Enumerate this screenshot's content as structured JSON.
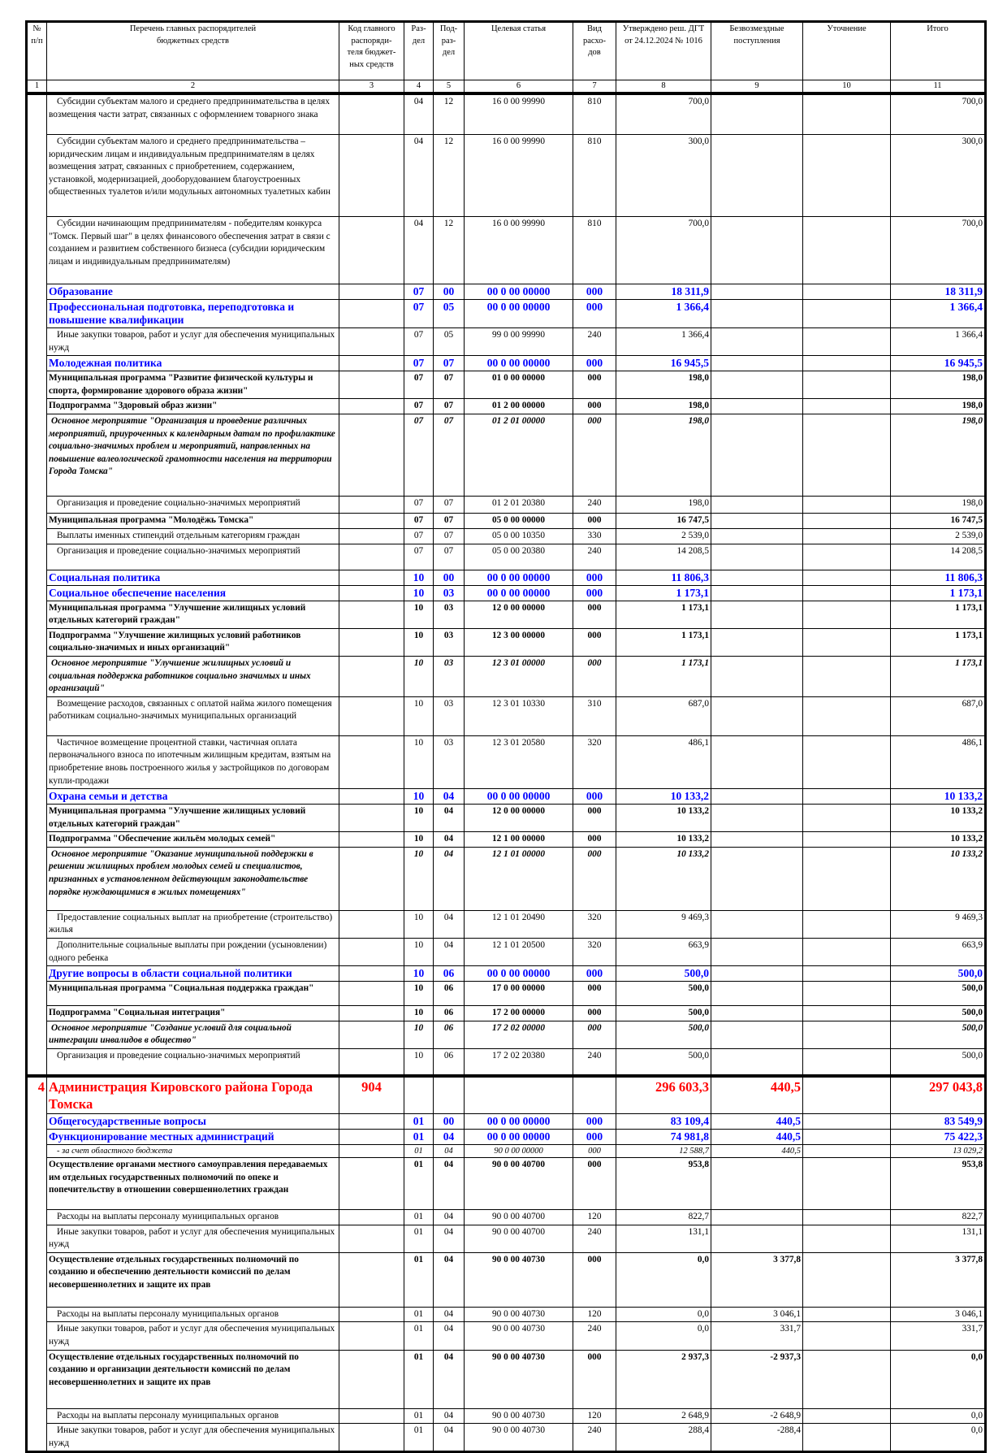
{
  "colors": {
    "section_blue": "#0000ff",
    "org_red": "#ff0000"
  },
  "header": {
    "columns": [
      "№\nп/п",
      "Перечень главных распорядителей\nбюджетных средств",
      "Код главного\nраспоряди-\nтеля бюджет-\nных средств",
      "Раз-\nдел",
      "Под-\nраз-\nдел",
      "Целевая статья",
      "Вид расхо-\nдов",
      "Утверждено реш. ДГТ\nот 24.12.2024 № 1016",
      "Безвозмездные\nпоступления",
      "Уточнение",
      "Итого"
    ],
    "col_numbers": [
      "1",
      "2",
      "3",
      "4",
      "5",
      "6",
      "7",
      "8",
      "9",
      "10",
      "11"
    ]
  },
  "rows": [
    {
      "style": "norm",
      "num": "",
      "name": "Субсидии субъектам малого и среднего предпринимательства в целях возмещения части затрат, связанных с оформлением товарного знака",
      "code": "",
      "section": "04",
      "subsection": "12",
      "target": "16 0 00 99990",
      "type": "810",
      "approved": "700,0",
      "gratuitous": "",
      "clarification": "",
      "total": "700,0"
    },
    {
      "style": "norm",
      "num": "",
      "name": "Субсидии субъектам малого и среднего предпринимательства – юридическим лицам и индивидуальным предпринимателям в целях возмещения затрат, связанных с приобретением, содержанием, установкой, модернизацией, дооборудованием благоустроенных общественных туалетов и/или модульных автономных туалетных кабин",
      "code": "",
      "section": "04",
      "subsection": "12",
      "target": "16 0 00 99990",
      "type": "810",
      "approved": "300,0",
      "gratuitous": "",
      "clarification": "",
      "total": "300,0"
    },
    {
      "style": "norm",
      "num": "",
      "name": "Субсидии начинающим предпринимателям - победителям конкурса \"Томск. Первый шаг\" в целях финансового обеспечения затрат в связи с созданием и развитием собственного бизнеса (субсидии юридическим лицам и индивидуальным предпринимателям)",
      "code": "",
      "section": "04",
      "subsection": "12",
      "target": "16 0 00 99990",
      "type": "810",
      "approved": "700,0",
      "gratuitous": "",
      "clarification": "",
      "total": "700,0"
    },
    {
      "style": "blue",
      "num": "",
      "name": "Образование",
      "code": "",
      "section": "07",
      "subsection": "00",
      "target": "00 0 00 00000",
      "type": "000",
      "approved": "18 311,9",
      "gratuitous": "",
      "clarification": "",
      "total": "18 311,9"
    },
    {
      "style": "blue",
      "num": "",
      "name": "Профессиональная подготовка, переподготовка и повышение квалификации",
      "code": "",
      "section": "07",
      "subsection": "05",
      "target": "00 0 00 00000",
      "type": "000",
      "approved": "1 366,4",
      "gratuitous": "",
      "clarification": "",
      "total": "1 366,4"
    },
    {
      "style": "norm",
      "num": "",
      "name": "Иные закупки товаров, работ и услуг для обеспечения муниципальных нужд",
      "code": "",
      "section": "07",
      "subsection": "05",
      "target": "99 0 00 99990",
      "type": "240",
      "approved": "1 366,4",
      "gratuitous": "",
      "clarification": "",
      "total": "1 366,4"
    },
    {
      "style": "blue",
      "num": "",
      "name": "Молодежная политика",
      "code": "",
      "section": "07",
      "subsection": "07",
      "target": "00 0 00 00000",
      "type": "000",
      "approved": "16 945,5",
      "gratuitous": "",
      "clarification": "",
      "total": "16 945,5"
    },
    {
      "style": "bold",
      "num": "",
      "name": "Муниципальная программа \"Развитие физической культуры и спорта, формирование здорового образа жизни\"",
      "code": "",
      "section": "07",
      "subsection": "07",
      "target": "01 0 00 00000",
      "type": "000",
      "approved": "198,0",
      "gratuitous": "",
      "clarification": "",
      "total": "198,0"
    },
    {
      "style": "bold",
      "num": "",
      "name": "Подпрограмма \"Здоровый образ жизни\"",
      "code": "",
      "section": "07",
      "subsection": "07",
      "target": "01 2 00 00000",
      "type": "000",
      "approved": "198,0",
      "gratuitous": "",
      "clarification": "",
      "total": "198,0"
    },
    {
      "style": "italic",
      "num": "",
      "name": "Основное мероприятие \"Организация и проведение различных мероприятий, приуроченных к календарным датам по профилактике социально-значимых проблем и мероприятий, направленных на повышение валеологической грамотности населения на территории Города Томска\"",
      "code": "",
      "section": "07",
      "subsection": "07",
      "target": "01 2 01 00000",
      "type": "000",
      "approved": "198,0",
      "gratuitous": "",
      "clarification": "",
      "total": "198,0"
    },
    {
      "style": "norm",
      "num": "",
      "name": "Организация и проведение социально-значимых мероприятий",
      "code": "",
      "section": "07",
      "subsection": "07",
      "target": "01 2 01 20380",
      "type": "240",
      "approved": "198,0",
      "gratuitous": "",
      "clarification": "",
      "total": "198,0"
    },
    {
      "style": "bold",
      "num": "",
      "name": "Муниципальная программа \"Молодёжь Томска\"",
      "code": "",
      "section": "07",
      "subsection": "07",
      "target": "05 0 00 00000",
      "type": "000",
      "approved": "16 747,5",
      "gratuitous": "",
      "clarification": "",
      "total": "16 747,5"
    },
    {
      "style": "norm",
      "num": "",
      "name": "Выплаты именных стипендий отдельным категориям граждан",
      "code": "",
      "section": "07",
      "subsection": "07",
      "target": "05 0 00 10350",
      "type": "330",
      "approved": "2 539,0",
      "gratuitous": "",
      "clarification": "",
      "total": "2 539,0"
    },
    {
      "style": "norm",
      "num": "",
      "name": "Организация и проведение социально-значимых мероприятий",
      "code": "",
      "section": "07",
      "subsection": "07",
      "target": "05 0 00 20380",
      "type": "240",
      "approved": "14 208,5",
      "gratuitous": "",
      "clarification": "",
      "total": "14 208,5"
    },
    {
      "style": "blue",
      "num": "",
      "name": "Социальная политика",
      "code": "",
      "section": "10",
      "subsection": "00",
      "target": "00 0 00 00000",
      "type": "000",
      "approved": "11 806,3",
      "gratuitous": "",
      "clarification": "",
      "total": "11 806,3"
    },
    {
      "style": "blue",
      "num": "",
      "name": "Социальное обеспечение населения",
      "code": "",
      "section": "10",
      "subsection": "03",
      "target": "00 0 00 00000",
      "type": "000",
      "approved": "1 173,1",
      "gratuitous": "",
      "clarification": "",
      "total": "1 173,1"
    },
    {
      "style": "bold",
      "num": "",
      "name": "Муниципальная программа \"Улучшение жилищных условий отдельных категорий граждан\"",
      "code": "",
      "section": "10",
      "subsection": "03",
      "target": "12 0 00 00000",
      "type": "000",
      "approved": "1 173,1",
      "gratuitous": "",
      "clarification": "",
      "total": "1 173,1"
    },
    {
      "style": "bold",
      "num": "",
      "name": "Подпрограмма \"Улучшение жилищных условий работников социально-значимых и иных организаций\"",
      "code": "",
      "section": "10",
      "subsection": "03",
      "target": "12 3 00 00000",
      "type": "000",
      "approved": "1 173,1",
      "gratuitous": "",
      "clarification": "",
      "total": "1 173,1"
    },
    {
      "style": "italic",
      "num": "",
      "name": "Основное мероприятие \"Улучшение жилищных условий и социальная поддержка работников социально значимых и иных организаций\"",
      "code": "",
      "section": "10",
      "subsection": "03",
      "target": "12 3 01 00000",
      "type": "000",
      "approved": "1 173,1",
      "gratuitous": "",
      "clarification": "",
      "total": "1 173,1"
    },
    {
      "style": "norm",
      "num": "",
      "name": "Возмещение расходов, связанных с оплатой найма жилого помещения работникам социально-значимых муниципальных организаций",
      "code": "",
      "section": "10",
      "subsection": "03",
      "target": "12 3 01 10330",
      "type": "310",
      "approved": "687,0",
      "gratuitous": "",
      "clarification": "",
      "total": "687,0"
    },
    {
      "style": "norm",
      "num": "",
      "name": "Частичное возмещение процентной ставки, частичная оплата первоначального взноса по ипотечным жилищным кредитам, взятым на приобретение вновь построенного жилья у застройщиков по договорам купли-продажи",
      "code": "",
      "section": "10",
      "subsection": "03",
      "target": "12 3 01 20580",
      "type": "320",
      "approved": "486,1",
      "gratuitous": "",
      "clarification": "",
      "total": "486,1"
    },
    {
      "style": "blue",
      "num": "",
      "name": "Охрана семьи и детства",
      "code": "",
      "section": "10",
      "subsection": "04",
      "target": "00 0 00 00000",
      "type": "000",
      "approved": "10 133,2",
      "gratuitous": "",
      "clarification": "",
      "total": "10 133,2"
    },
    {
      "style": "bold",
      "num": "",
      "name": "Муниципальная программа \"Улучшение жилищных условий отдельных категорий граждан\"",
      "code": "",
      "section": "10",
      "subsection": "04",
      "target": "12 0 00 00000",
      "type": "000",
      "approved": "10 133,2",
      "gratuitous": "",
      "clarification": "",
      "total": "10 133,2"
    },
    {
      "style": "bold",
      "num": "",
      "name": "Подпрограмма \"Обеспечение жильём молодых семей\"",
      "code": "",
      "section": "10",
      "subsection": "04",
      "target": "12 1 00 00000",
      "type": "000",
      "approved": "10 133,2",
      "gratuitous": "",
      "clarification": "",
      "total": "10 133,2"
    },
    {
      "style": "italic",
      "num": "",
      "name": "Основное мероприятие \"Оказание муниципальной поддержки в решении жилищных проблем молодых семей и специалистов, признанных в установленном действующим законодательстве порядке нуждающимися в жилых помещениях\"",
      "code": "",
      "section": "10",
      "subsection": "04",
      "target": "12 1 01 00000",
      "type": "000",
      "approved": "10 133,2",
      "gratuitous": "",
      "clarification": "",
      "total": "10 133,2"
    },
    {
      "style": "norm",
      "num": "",
      "name": "Предоставление социальных выплат на приобретение (строительство) жилья",
      "code": "",
      "section": "10",
      "subsection": "04",
      "target": "12 1 01 20490",
      "type": "320",
      "approved": "9 469,3",
      "gratuitous": "",
      "clarification": "",
      "total": "9 469,3"
    },
    {
      "style": "norm",
      "num": "",
      "name": "Дополнительные социальные выплаты при рождении (усыновлении) одного ребенка",
      "code": "",
      "section": "10",
      "subsection": "04",
      "target": "12 1 01 20500",
      "type": "320",
      "approved": "663,9",
      "gratuitous": "",
      "clarification": "",
      "total": "663,9"
    },
    {
      "style": "blue",
      "num": "",
      "name": "Другие вопросы в области социальной политики",
      "code": "",
      "section": "10",
      "subsection": "06",
      "target": "00 0 00 00000",
      "type": "000",
      "approved": "500,0",
      "gratuitous": "",
      "clarification": "",
      "total": "500,0"
    },
    {
      "style": "bold",
      "num": "",
      "name": "Муниципальная программа \"Социальная поддержка граждан\"",
      "code": "",
      "section": "10",
      "subsection": "06",
      "target": "17 0 00 00000",
      "type": "000",
      "approved": "500,0",
      "gratuitous": "",
      "clarification": "",
      "total": "500,0"
    },
    {
      "style": "bold",
      "num": "",
      "name": "Подпрограмма \"Социальная интеграция\"",
      "code": "",
      "section": "10",
      "subsection": "06",
      "target": "17 2 00 00000",
      "type": "000",
      "approved": "500,0",
      "gratuitous": "",
      "clarification": "",
      "total": "500,0"
    },
    {
      "style": "italic",
      "num": "",
      "name": "Основное мероприятие \"Создание условий для социальной интеграции инвалидов в общество\"",
      "code": "",
      "section": "10",
      "subsection": "06",
      "target": "17 2 02 00000",
      "type": "000",
      "approved": "500,0",
      "gratuitous": "",
      "clarification": "",
      "total": "500,0"
    },
    {
      "style": "norm",
      "num": "",
      "name": "Организация и проведение социально-значимых мероприятий",
      "code": "",
      "section": "10",
      "subsection": "06",
      "target": "17 2 02 20380",
      "type": "240",
      "approved": "500,0",
      "gratuitous": "",
      "clarification": "",
      "total": "500,0"
    },
    {
      "style": "red",
      "num": "4",
      "name": "Администрация Кировского района Города Томска",
      "code": "904",
      "section": "",
      "subsection": "",
      "target": "",
      "type": "",
      "approved": "296 603,3",
      "gratuitous": "440,5",
      "clarification": "",
      "total": "297 043,8"
    },
    {
      "style": "blue",
      "num": "",
      "name": "Общегосударственные вопросы",
      "code": "",
      "section": "01",
      "subsection": "00",
      "target": "00 0 00 00000",
      "type": "000",
      "approved": "83 109,4",
      "gratuitous": "440,5",
      "clarification": "",
      "total": "83 549,9"
    },
    {
      "style": "blue",
      "num": "",
      "name": "Функционирование местных администраций",
      "code": "",
      "section": "01",
      "subsection": "04",
      "target": "00 0 00 00000",
      "type": "000",
      "approved": "74 981,8",
      "gratuitous": "440,5",
      "clarification": "",
      "total": "75 422,3"
    },
    {
      "style": "sub",
      "num": "",
      "name": "- за счет областного бюджета",
      "code": "",
      "section": "01",
      "subsection": "04",
      "target": "90 0 00 00000",
      "type": "000",
      "approved": "12 588,7",
      "gratuitous": "440,5",
      "clarification": "",
      "total": "13 029,2"
    },
    {
      "style": "bold",
      "num": "",
      "name": "Осуществление органами местного самоуправления передаваемых им отдельных государственных полномочий по опеке и попечительству в отношении совершеннолетних граждан",
      "code": "",
      "section": "01",
      "subsection": "04",
      "target": "90 0 00 40700",
      "type": "000",
      "approved": "953,8",
      "gratuitous": "",
      "clarification": "",
      "total": "953,8"
    },
    {
      "style": "norm",
      "num": "",
      "name": "Расходы на выплаты персоналу муниципальных органов",
      "code": "",
      "section": "01",
      "subsection": "04",
      "target": "90 0 00 40700",
      "type": "120",
      "approved": "822,7",
      "gratuitous": "",
      "clarification": "",
      "total": "822,7"
    },
    {
      "style": "norm",
      "num": "",
      "name": "Иные закупки товаров, работ и услуг для обеспечения муниципальных нужд",
      "code": "",
      "section": "01",
      "subsection": "04",
      "target": "90 0 00 40700",
      "type": "240",
      "approved": "131,1",
      "gratuitous": "",
      "clarification": "",
      "total": "131,1"
    },
    {
      "style": "bold",
      "num": "",
      "name": "Осуществление отдельных государственных полномочий по созданию и обеспечению деятельности комиссий по делам несовершеннолетних и защите их прав",
      "code": "",
      "section": "01",
      "subsection": "04",
      "target": "90 0 00 40730",
      "type": "000",
      "approved": "0,0",
      "gratuitous": "3 377,8",
      "clarification": "",
      "total": "3 377,8"
    },
    {
      "style": "norm",
      "num": "",
      "name": "Расходы на выплаты персоналу муниципальных органов",
      "code": "",
      "section": "01",
      "subsection": "04",
      "target": "90 0 00 40730",
      "type": "120",
      "approved": "0,0",
      "gratuitous": "3 046,1",
      "clarification": "",
      "total": "3 046,1"
    },
    {
      "style": "norm",
      "num": "",
      "name": "Иные закупки товаров, работ и услуг для обеспечения муниципальных нужд",
      "code": "",
      "section": "01",
      "subsection": "04",
      "target": "90 0 00 40730",
      "type": "240",
      "approved": "0,0",
      "gratuitous": "331,7",
      "clarification": "",
      "total": "331,7"
    },
    {
      "style": "bold",
      "num": "",
      "name": "Осуществление отдельных государственных полномочий по созданию и организации деятельности комиссий по делам несовершеннолетних и защите их прав",
      "code": "",
      "section": "01",
      "subsection": "04",
      "target": "90 0 00 40730",
      "type": "000",
      "approved": "2 937,3",
      "gratuitous": "-2 937,3",
      "clarification": "",
      "total": "0,0"
    },
    {
      "style": "norm",
      "num": "",
      "name": "Расходы на выплаты персоналу муниципальных органов",
      "code": "",
      "section": "01",
      "subsection": "04",
      "target": "90 0 00 40730",
      "type": "120",
      "approved": "2 648,9",
      "gratuitous": "-2 648,9",
      "clarification": "",
      "total": "0,0"
    },
    {
      "style": "norm",
      "num": "",
      "name": "Иные закупки товаров, работ и услуг для обеспечения муниципальных нужд",
      "code": "",
      "section": "01",
      "subsection": "04",
      "target": "90 0 00 40730",
      "type": "240",
      "approved": "288,4",
      "gratuitous": "-288,4",
      "clarification": "",
      "total": "0,0"
    }
  ]
}
